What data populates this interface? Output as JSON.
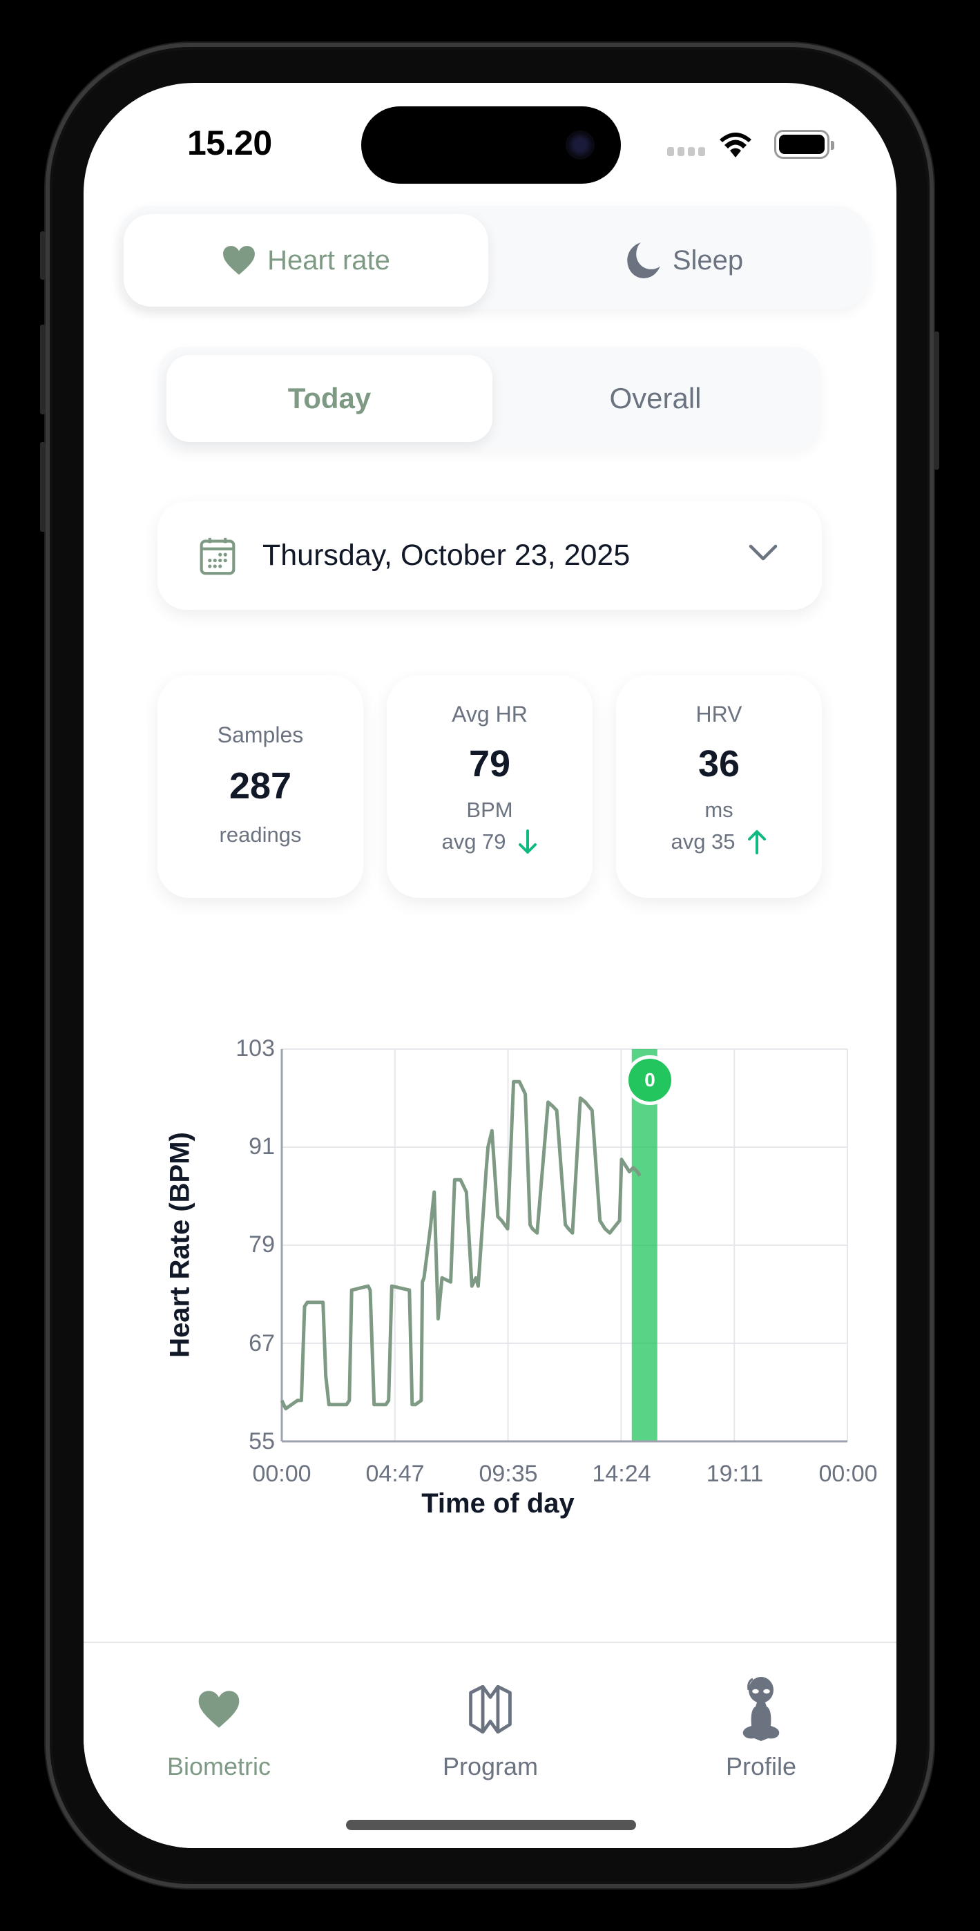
{
  "status_bar": {
    "time": "15.20"
  },
  "top_tabs": [
    {
      "label": "Heart rate",
      "icon": "heart-icon",
      "active": true
    },
    {
      "label": "Sleep",
      "icon": "moon-icon",
      "active": false
    }
  ],
  "period_tabs": [
    {
      "label": "Today",
      "active": true
    },
    {
      "label": "Overall",
      "active": false
    }
  ],
  "date_picker": {
    "value": "Thursday, October 23, 2025",
    "icon": "calendar-icon"
  },
  "stats": {
    "samples": {
      "label": "Samples",
      "value": "287",
      "unit": "readings"
    },
    "avg_hr": {
      "label": "Avg HR",
      "value": "79",
      "unit": "BPM",
      "avg": "avg 79",
      "trend": "down"
    },
    "hrv": {
      "label": "HRV",
      "value": "36",
      "unit": "ms",
      "avg": "avg 35",
      "trend": "up"
    }
  },
  "colors": {
    "accent": "#7e9a84",
    "muted": "#6b7280",
    "text": "#111827",
    "trend": "#10b981",
    "highlight": "#22c55e"
  },
  "chart": {
    "badge": "0",
    "y_title": "Heart Rate (BPM)",
    "x_title": "Time of day",
    "y_ticks": [
      "103",
      "91",
      "79",
      "67",
      "55"
    ],
    "x_ticks": [
      "00:00",
      "04:47",
      "09:35",
      "14:24",
      "19:11",
      "00:00"
    ]
  },
  "chart_data": {
    "type": "line",
    "title": "",
    "xlabel": "Time of day",
    "ylabel": "Heart Rate (BPM)",
    "ylim": [
      55,
      103
    ],
    "xlim": [
      "00:00",
      "24:00"
    ],
    "y_ticks": [
      55,
      67,
      79,
      91,
      103
    ],
    "x_ticks": [
      "00:00",
      "04:47",
      "09:35",
      "14:24",
      "19:11",
      "00:00"
    ],
    "grid": true,
    "series": [
      {
        "name": "Heart rate",
        "color": "#7e9a84",
        "x_minutes": [
          0,
          10,
          40,
          50,
          58,
          65,
          105,
          112,
          120,
          165,
          172,
          178,
          220,
          225,
          235,
          265,
          272,
          280,
          325,
          332,
          340,
          355,
          358,
          362,
          378,
          388,
          398,
          408,
          430,
          440,
          455,
          470,
          484,
          494,
          500,
          520,
          525,
          535,
          550,
          560,
          575,
          590,
          605,
          620,
          632,
          638,
          650,
          678,
          690,
          700,
          722,
          730,
          740,
          760,
          773,
          790,
          810,
          823,
          835,
          860,
          865,
          885,
          895,
          905,
          912
        ],
        "values": [
          60,
          59,
          60,
          60,
          71.5,
          72,
          72,
          63,
          59.5,
          59.5,
          60,
          73.5,
          74,
          73.5,
          59.5,
          59.5,
          60,
          74,
          73.5,
          59.5,
          59.5,
          60,
          74.5,
          75,
          81,
          85.5,
          70,
          75,
          74.5,
          87,
          87,
          85.5,
          74,
          75,
          74,
          88,
          91,
          93,
          82.5,
          82,
          81,
          99,
          99,
          97.5,
          81.5,
          81,
          80.5,
          96.5,
          96,
          95.5,
          81.5,
          81,
          80.5,
          97,
          96.5,
          95.5,
          82,
          81,
          80.5,
          82,
          89.5,
          88,
          88.5,
          88,
          87.5
        ]
      }
    ],
    "highlight_band": {
      "start": "14:51",
      "end": "15:56",
      "color": "#22c55e",
      "badge_label": "0"
    }
  },
  "tab_bar": [
    {
      "label": "Biometric",
      "icon": "heart-icon",
      "active": true
    },
    {
      "label": "Program",
      "icon": "map-icon",
      "active": false
    },
    {
      "label": "Profile",
      "icon": "alien-icon",
      "active": false
    }
  ]
}
